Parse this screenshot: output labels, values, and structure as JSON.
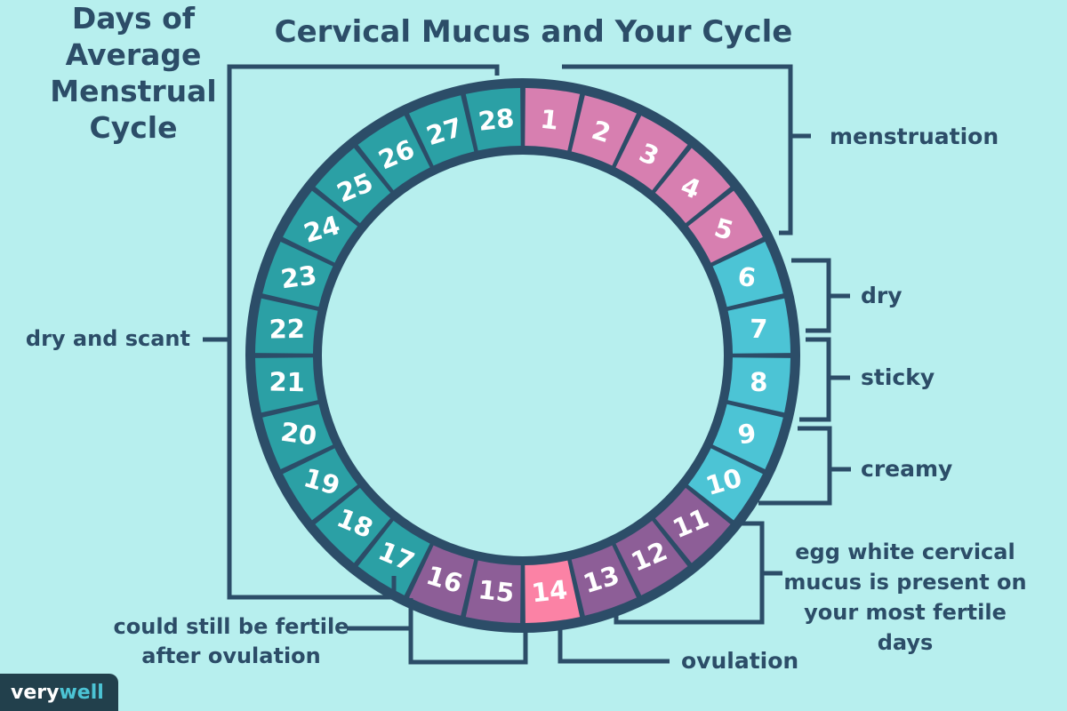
{
  "title": "Cervical Mucus and Your Cycle",
  "center_text": {
    "line1": "Days of",
    "line2": "Average",
    "line3": "Menstrual",
    "line4": "Cycle"
  },
  "colors": {
    "background": "#b7efee",
    "ink": "#2c4d68",
    "menstruation": "#d77fb0",
    "fertile_window": "#8d5e97",
    "ovulation": "#fb82a5",
    "cyan_days": "#4cc4d5",
    "teal_days": "#2ba0a5",
    "number_text": "#ffffff",
    "logo_bg": "#22404c",
    "logo_well": "#4cc4d5"
  },
  "labels": {
    "menstruation": "menstruation",
    "dry": "dry",
    "sticky": "sticky",
    "creamy": "creamy",
    "egg_white_line1": "egg white cervical",
    "egg_white_line2": "mucus is present on",
    "egg_white_line3": "your most fertile days",
    "ovulation": "ovulation",
    "fertile_line1": "could still be fertile",
    "fertile_line2": "after ovulation",
    "dry_and_scant": "dry and scant"
  },
  "phases": [
    {
      "label": "menstruation",
      "days": "1-5",
      "color": "#d77fb0"
    },
    {
      "label": "dry",
      "days": "6-7",
      "color": "#4cc4d5"
    },
    {
      "label": "sticky",
      "days": "8-9",
      "color": "#4cc4d5"
    },
    {
      "label": "creamy",
      "days": "10",
      "color": "#4cc4d5"
    },
    {
      "label": "egg white cervical mucus is present on your most fertile days",
      "days": "11-13",
      "color": "#8d5e97"
    },
    {
      "label": "ovulation",
      "days": "14",
      "color": "#fb82a5"
    },
    {
      "label": "could still be fertile after ovulation",
      "days": "15-16",
      "color": "#8d5e97"
    },
    {
      "label": "dry and scant",
      "days": "17-28",
      "color": "#2ba0a5"
    }
  ],
  "wheel": {
    "total_days": 28,
    "days": [
      {
        "n": "1",
        "color": "menstruation"
      },
      {
        "n": "2",
        "color": "menstruation"
      },
      {
        "n": "3",
        "color": "menstruation"
      },
      {
        "n": "4",
        "color": "menstruation"
      },
      {
        "n": "5",
        "color": "menstruation"
      },
      {
        "n": "6",
        "color": "cyan_days"
      },
      {
        "n": "7",
        "color": "cyan_days"
      },
      {
        "n": "8",
        "color": "cyan_days"
      },
      {
        "n": "9",
        "color": "cyan_days"
      },
      {
        "n": "10",
        "color": "cyan_days"
      },
      {
        "n": "11",
        "color": "fertile_window"
      },
      {
        "n": "12",
        "color": "fertile_window"
      },
      {
        "n": "13",
        "color": "fertile_window"
      },
      {
        "n": "14",
        "color": "ovulation"
      },
      {
        "n": "15",
        "color": "fertile_window"
      },
      {
        "n": "16",
        "color": "fertile_window"
      },
      {
        "n": "17",
        "color": "teal_days"
      },
      {
        "n": "18",
        "color": "teal_days"
      },
      {
        "n": "19",
        "color": "teal_days"
      },
      {
        "n": "20",
        "color": "teal_days"
      },
      {
        "n": "21",
        "color": "teal_days"
      },
      {
        "n": "22",
        "color": "teal_days"
      },
      {
        "n": "23",
        "color": "teal_days"
      },
      {
        "n": "24",
        "color": "teal_days"
      },
      {
        "n": "25",
        "color": "teal_days"
      },
      {
        "n": "26",
        "color": "teal_days"
      },
      {
        "n": "27",
        "color": "teal_days"
      },
      {
        "n": "28",
        "color": "teal_days"
      }
    ]
  },
  "logo": {
    "prefix": "very",
    "suffix": "well"
  }
}
